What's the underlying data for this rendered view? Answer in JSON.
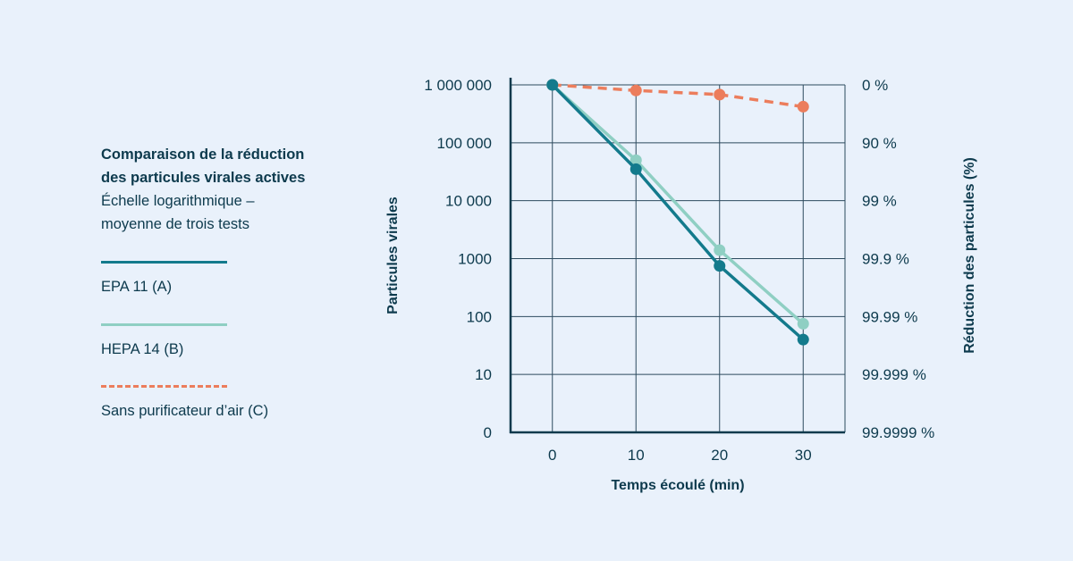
{
  "legend": {
    "title_line1": "Comparaison de la réduction",
    "title_line2": "des particules virales actives",
    "subtitle_line1": "Échelle logarithmique  –",
    "subtitle_line2": "moyenne de trois tests"
  },
  "chart_data": {
    "type": "line",
    "x": [
      0,
      10,
      20,
      30
    ],
    "xlim": [
      -5,
      35
    ],
    "ylim": [
      0,
      6
    ],
    "y_scale": "log",
    "xlabel": "Temps écoulé (min)",
    "ylabel": "Particules virales",
    "ylabel_right": "Réduction des particules (%)",
    "x_tick_labels": [
      "0",
      "10",
      "20",
      "30"
    ],
    "y_tick_labels": [
      "0",
      "10",
      "100",
      "1000",
      "10 000",
      "100 000",
      "1 000 000"
    ],
    "y_right_tick_labels": [
      "99.9999 %",
      "99.999 %",
      "99.99 %",
      "99.9 %",
      "99 %",
      "90 %",
      "0 %"
    ],
    "grid": true,
    "series": [
      {
        "name": "EPA 11 (A)",
        "color": "#137a8c",
        "style": "solid",
        "values": [
          1000000,
          35000,
          750,
          40
        ]
      },
      {
        "name": "HEPA 14 (B)",
        "color": "#8fcfc3",
        "style": "solid",
        "values": [
          1000000,
          50000,
          1400,
          75
        ]
      },
      {
        "name": "Sans purificateur d’air (C)",
        "color": "#ec7d5c",
        "style": "dashed",
        "values": [
          1000000,
          800000,
          680000,
          420000
        ]
      }
    ]
  }
}
